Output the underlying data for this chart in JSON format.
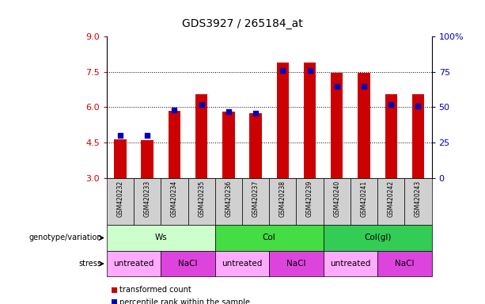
{
  "title": "GDS3927 / 265184_at",
  "samples": [
    "GSM420232",
    "GSM420233",
    "GSM420234",
    "GSM420235",
    "GSM420236",
    "GSM420237",
    "GSM420238",
    "GSM420239",
    "GSM420240",
    "GSM420241",
    "GSM420242",
    "GSM420243"
  ],
  "transformed_count": [
    4.65,
    4.6,
    5.85,
    6.55,
    5.82,
    5.75,
    7.9,
    7.9,
    7.45,
    7.45,
    6.55,
    6.55
  ],
  "percentile_rank": [
    30,
    30,
    48,
    52,
    47,
    46,
    76,
    76,
    65,
    65,
    52,
    51
  ],
  "ylim_left": [
    3,
    9
  ],
  "ylim_right": [
    0,
    100
  ],
  "yticks_left": [
    3,
    4.5,
    6,
    7.5,
    9
  ],
  "yticks_right": [
    0,
    25,
    50,
    75,
    100
  ],
  "ytick_right_labels": [
    "0",
    "25",
    "50",
    "75",
    "100%"
  ],
  "bar_color": "#cc0000",
  "percentile_color": "#0000bb",
  "bar_width": 0.45,
  "genotype_groups": [
    {
      "label": "Ws",
      "start": 0,
      "end": 3,
      "color": "#ccffcc"
    },
    {
      "label": "Col",
      "start": 4,
      "end": 7,
      "color": "#44dd44"
    },
    {
      "label": "Col(gl)",
      "start": 8,
      "end": 11,
      "color": "#33cc55"
    }
  ],
  "stress_groups": [
    {
      "label": "untreated",
      "start": 0,
      "end": 1,
      "color": "#ffaaff"
    },
    {
      "label": "NaCl",
      "start": 2,
      "end": 3,
      "color": "#dd44dd"
    },
    {
      "label": "untreated",
      "start": 4,
      "end": 5,
      "color": "#ffaaff"
    },
    {
      "label": "NaCl",
      "start": 6,
      "end": 7,
      "color": "#dd44dd"
    },
    {
      "label": "untreated",
      "start": 8,
      "end": 9,
      "color": "#ffaaff"
    },
    {
      "label": "NaCl",
      "start": 10,
      "end": 11,
      "color": "#dd44dd"
    }
  ],
  "genotype_label": "genotype/variation",
  "stress_label": "stress",
  "legend_red": "transformed count",
  "legend_blue": "percentile rank within the sample",
  "tick_color_left": "#cc0000",
  "tick_color_right": "#0000bb",
  "grid_vals": [
    4.5,
    6.0,
    7.5
  ],
  "sample_bg": "#d0d0d0"
}
